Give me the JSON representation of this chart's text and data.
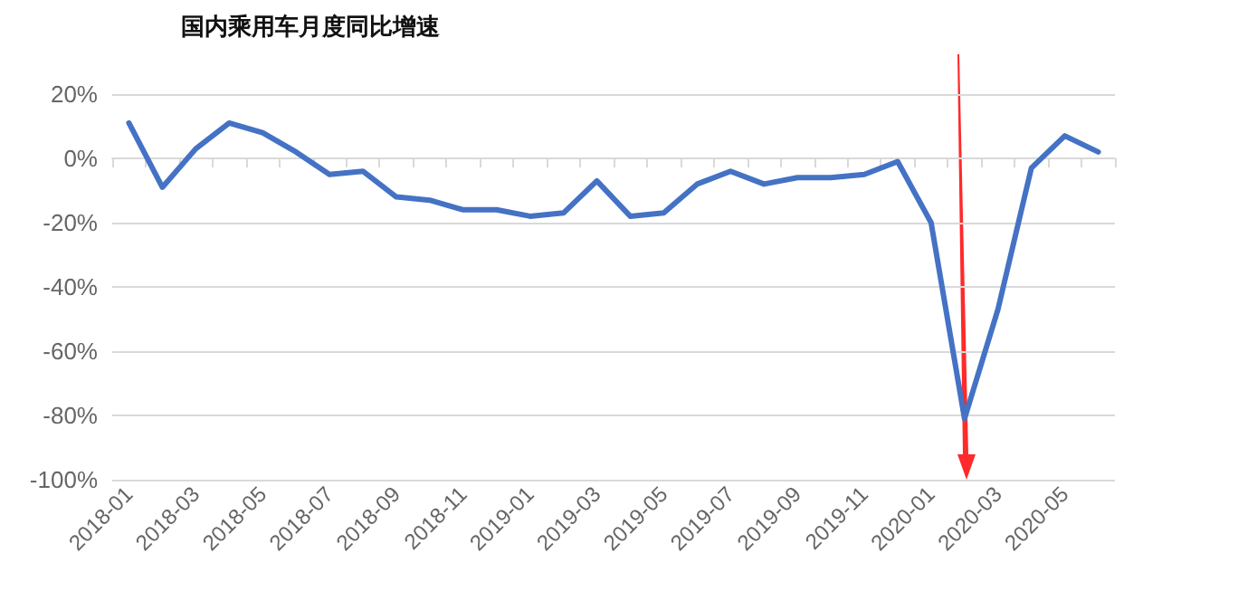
{
  "chart_data": {
    "type": "line",
    "title": "国内乘用车月度同比增速",
    "categories": [
      "2018-01",
      null,
      "2018-03",
      null,
      "2018-05",
      null,
      "2018-07",
      null,
      "2018-09",
      null,
      "2018-11",
      null,
      "2019-01",
      null,
      "2019-03",
      null,
      "2019-05",
      null,
      "2019-07",
      null,
      "2019-09",
      null,
      "2019-11",
      null,
      "2020-01",
      null,
      "2020-03",
      null,
      "2020-05",
      null
    ],
    "series": [
      {
        "color": "#4472c4",
        "values": [
          11,
          -9,
          3,
          11,
          8,
          2,
          -5,
          -4,
          -12,
          -13,
          -16,
          -16,
          -18,
          -17,
          -7,
          -18,
          -17,
          -8,
          -4,
          -8,
          -6,
          -6,
          -5,
          -1,
          -20,
          -81,
          -47,
          -3,
          7,
          2
        ]
      }
    ],
    "ylim": [
      -100,
      20
    ],
    "yticks": [
      {
        "value": -100,
        "label": "-100%"
      },
      {
        "value": -80,
        "label": "-80%"
      },
      {
        "value": -60,
        "label": "-60%"
      },
      {
        "value": -40,
        "label": "-40%"
      },
      {
        "value": -20,
        "label": "-20%"
      },
      {
        "value": 0,
        "label": "0%"
      },
      {
        "value": 20,
        "label": "20%"
      }
    ],
    "grid": "y",
    "marker": "none",
    "line_style": "solid"
  }
}
